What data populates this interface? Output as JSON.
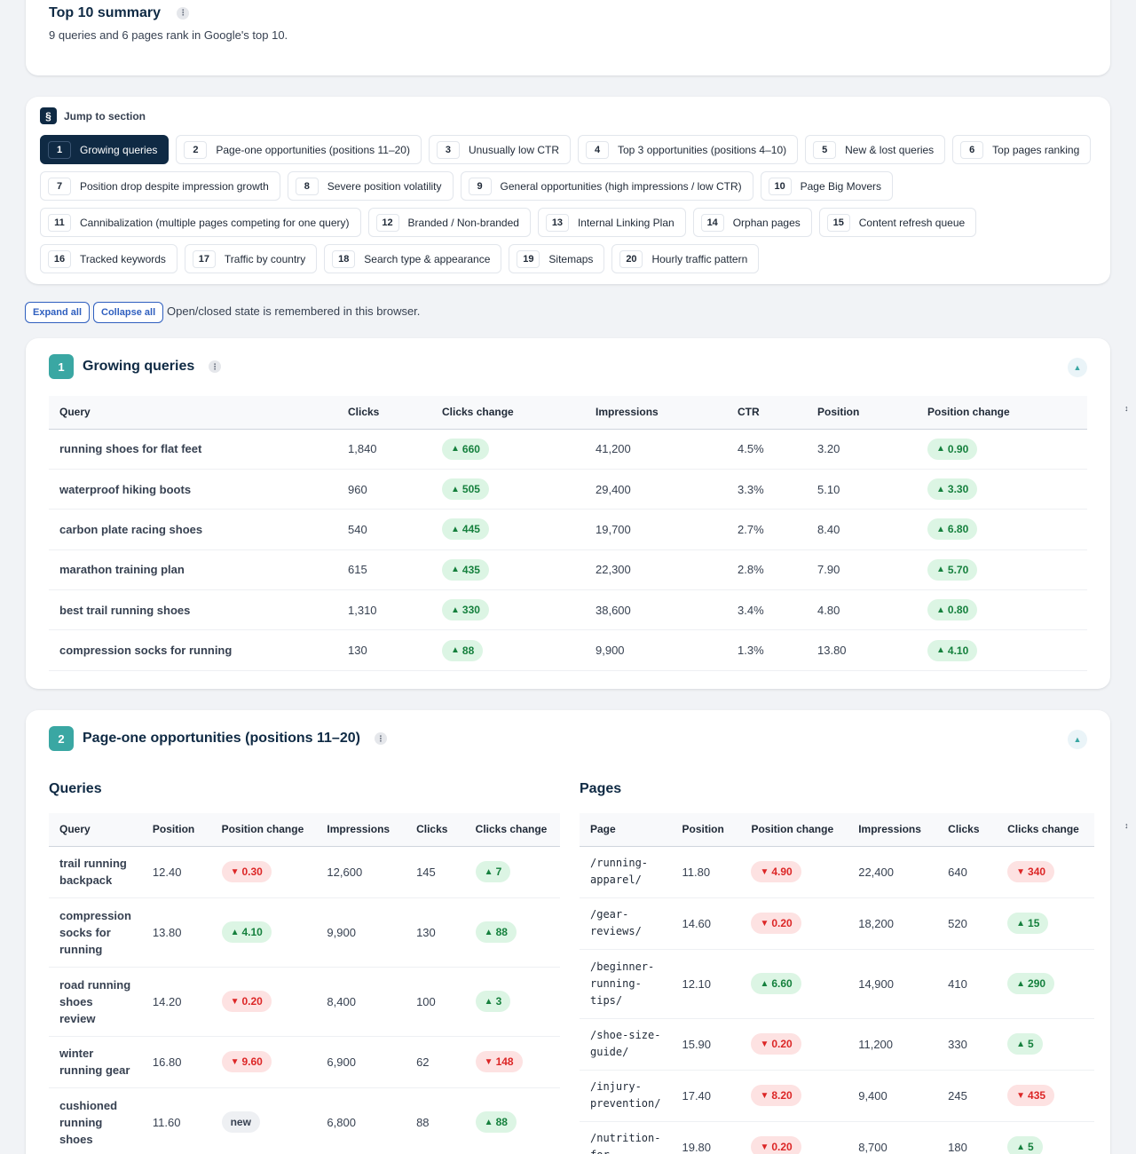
{
  "summary": {
    "title": "Top 10 summary",
    "subtitle": "9 queries and 6 pages rank in Google's top 10."
  },
  "jump": {
    "label": "Jump to section",
    "icon": "§",
    "rows": [
      [
        {
          "num": "1",
          "label": "Growing queries",
          "active": true
        },
        {
          "num": "2",
          "label": "Page-one opportunities (positions 11–20)"
        },
        {
          "num": "3",
          "label": "Unusually low CTR"
        },
        {
          "num": "4",
          "label": "Top 3 opportunities (positions 4–10)"
        },
        {
          "num": "5",
          "label": "New & lost queries"
        },
        {
          "num": "6",
          "label": "Top pages ranking"
        }
      ],
      [
        {
          "num": "7",
          "label": "Position drop despite impression growth"
        },
        {
          "num": "8",
          "label": "Severe position volatility"
        },
        {
          "num": "9",
          "label": "General opportunities (high impressions / low CTR)"
        },
        {
          "num": "10",
          "label": "Page Big Movers"
        }
      ],
      [
        {
          "num": "11",
          "label": "Cannibalization (multiple pages competing for one query)"
        },
        {
          "num": "12",
          "label": "Branded / Non-branded"
        },
        {
          "num": "13",
          "label": "Internal Linking Plan"
        },
        {
          "num": "14",
          "label": "Orphan pages"
        },
        {
          "num": "15",
          "label": "Content refresh queue"
        }
      ],
      [
        {
          "num": "16",
          "label": "Tracked keywords"
        },
        {
          "num": "17",
          "label": "Traffic by country"
        },
        {
          "num": "18",
          "label": "Search type & appearance"
        },
        {
          "num": "19",
          "label": "Sitemaps"
        },
        {
          "num": "20",
          "label": "Hourly traffic pattern"
        }
      ]
    ]
  },
  "controls": {
    "expand_all": "Expand all",
    "collapse_all": "Collapse all",
    "note": "Open/closed state is remembered in this browser."
  },
  "growing": {
    "num": "1",
    "title": "Growing queries",
    "columns": [
      "Query",
      "Clicks",
      "Clicks change",
      "Impressions",
      "CTR",
      "Position",
      "Position change"
    ],
    "rows": [
      {
        "query": "running shoes for flat feet",
        "clicks": "1,840",
        "clicks_change": "660",
        "clicks_dir": "up",
        "impressions": "41,200",
        "ctr": "4.5%",
        "position": "3.20",
        "pos_change": "0.90",
        "pos_dir": "up"
      },
      {
        "query": "waterproof hiking boots",
        "clicks": "960",
        "clicks_change": "505",
        "clicks_dir": "up",
        "impressions": "29,400",
        "ctr": "3.3%",
        "position": "5.10",
        "pos_change": "3.30",
        "pos_dir": "up"
      },
      {
        "query": "carbon plate racing shoes",
        "clicks": "540",
        "clicks_change": "445",
        "clicks_dir": "up",
        "impressions": "19,700",
        "ctr": "2.7%",
        "position": "8.40",
        "pos_change": "6.80",
        "pos_dir": "up"
      },
      {
        "query": "marathon training plan",
        "clicks": "615",
        "clicks_change": "435",
        "clicks_dir": "up",
        "impressions": "22,300",
        "ctr": "2.8%",
        "position": "7.90",
        "pos_change": "5.70",
        "pos_dir": "up"
      },
      {
        "query": "best trail running shoes",
        "clicks": "1,310",
        "clicks_change": "330",
        "clicks_dir": "up",
        "impressions": "38,600",
        "ctr": "3.4%",
        "position": "4.80",
        "pos_change": "0.80",
        "pos_dir": "up"
      },
      {
        "query": "compression socks for running",
        "clicks": "130",
        "clicks_change": "88",
        "clicks_dir": "up",
        "impressions": "9,900",
        "ctr": "1.3%",
        "position": "13.80",
        "pos_change": "4.10",
        "pos_dir": "up"
      }
    ]
  },
  "pageone": {
    "num": "2",
    "title": "Page-one opportunities (positions 11–20)",
    "queries_heading": "Queries",
    "pages_heading": "Pages",
    "query_columns": [
      "Query",
      "Position",
      "Position change",
      "Impressions",
      "Clicks",
      "Clicks change"
    ],
    "page_columns": [
      "Page",
      "Position",
      "Position change",
      "Impressions",
      "Clicks",
      "Clicks change"
    ],
    "queries": [
      {
        "lines": [
          "trail running",
          "backpack"
        ],
        "position": "12.40",
        "pos_change": "0.30",
        "pos_dir": "down",
        "impressions": "12,600",
        "clicks": "145",
        "clicks_change": "7",
        "clicks_dir": "up"
      },
      {
        "lines": [
          "compression",
          "socks for",
          "running"
        ],
        "position": "13.80",
        "pos_change": "4.10",
        "pos_dir": "up",
        "impressions": "9,900",
        "clicks": "130",
        "clicks_change": "88",
        "clicks_dir": "up"
      },
      {
        "lines": [
          "road running",
          "shoes",
          "review"
        ],
        "position": "14.20",
        "pos_change": "0.20",
        "pos_dir": "down",
        "impressions": "8,400",
        "clicks": "100",
        "clicks_change": "3",
        "clicks_dir": "up"
      },
      {
        "lines": [
          "winter",
          "running gear"
        ],
        "position": "16.80",
        "pos_change": "9.60",
        "pos_dir": "down",
        "impressions": "6,900",
        "clicks": "62",
        "clicks_change": "148",
        "clicks_dir": "down"
      },
      {
        "lines": [
          "cushioned",
          "running",
          "shoes"
        ],
        "position": "11.60",
        "pos_change": "new",
        "pos_dir": "new",
        "impressions": "6,800",
        "clicks": "88",
        "clicks_change": "88",
        "clicks_dir": "up"
      }
    ],
    "pages": [
      {
        "lines": [
          "/running-",
          "apparel/"
        ],
        "position": "11.80",
        "pos_change": "4.90",
        "pos_dir": "down",
        "impressions": "22,400",
        "clicks": "640",
        "clicks_change": "340",
        "clicks_dir": "down"
      },
      {
        "lines": [
          "/gear-",
          "reviews/"
        ],
        "position": "14.60",
        "pos_change": "0.20",
        "pos_dir": "down",
        "impressions": "18,200",
        "clicks": "520",
        "clicks_change": "15",
        "clicks_dir": "up"
      },
      {
        "lines": [
          "/beginner-",
          "running-",
          "tips/"
        ],
        "position": "12.10",
        "pos_change": "6.60",
        "pos_dir": "up",
        "impressions": "14,900",
        "clicks": "410",
        "clicks_change": "290",
        "clicks_dir": "up"
      },
      {
        "lines": [
          "/shoe-size-",
          "guide/"
        ],
        "position": "15.90",
        "pos_change": "0.20",
        "pos_dir": "down",
        "impressions": "11,200",
        "clicks": "330",
        "clicks_change": "5",
        "clicks_dir": "up"
      },
      {
        "lines": [
          "/injury-",
          "prevention/"
        ],
        "position": "17.40",
        "pos_change": "8.20",
        "pos_dir": "down",
        "impressions": "9,400",
        "clicks": "245",
        "clicks_change": "435",
        "clicks_dir": "down"
      },
      {
        "lines": [
          "/nutrition-",
          "for-"
        ],
        "position": "19.80",
        "pos_change": "0.20",
        "pos_dir": "down",
        "impressions": "8,700",
        "clicks": "180",
        "clicks_change": "5",
        "clicks_dir": "up"
      }
    ]
  },
  "icons": {
    "up": "▲",
    "down": "▼",
    "collapse": "▲",
    "info": "⋮",
    "scroll": "↕"
  },
  "colors": {
    "accent": "#3aa7a3",
    "navy": "#0f2a44",
    "up": "#15803d",
    "down": "#dc2626",
    "link": "#2f5fbf"
  }
}
